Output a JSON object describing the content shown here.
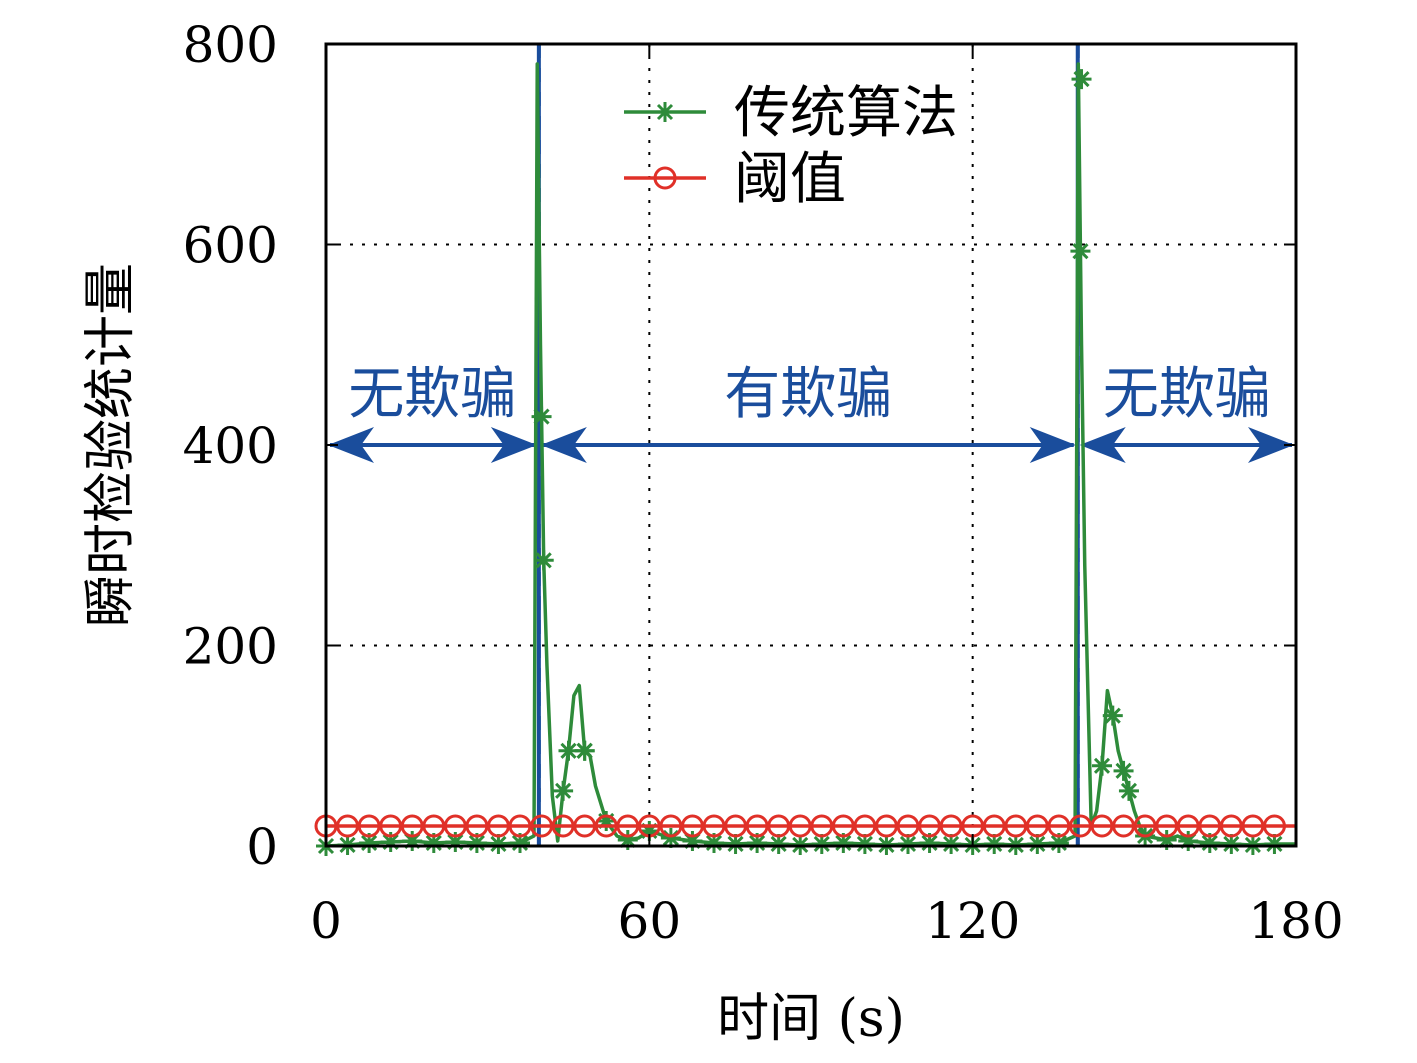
{
  "chart_data": {
    "type": "line",
    "title": "",
    "xlabel": "时间 (s)",
    "ylabel": "瞬时检验统计量",
    "xlim": [
      0,
      180
    ],
    "ylim": [
      0,
      800
    ],
    "xticks": [
      0,
      60,
      120,
      180
    ],
    "yticks": [
      0,
      200,
      400,
      600,
      800
    ],
    "grid": true,
    "legend_position": "top-center",
    "series": [
      {
        "name": "传统算法",
        "color": "#2e8b3a",
        "marker": "asterisk",
        "x": [
          0,
          4,
          8,
          12,
          16,
          20,
          24,
          28,
          32,
          36,
          38.6,
          39.2,
          39.8,
          40.4,
          41,
          42,
          43,
          44,
          45,
          46,
          47,
          48,
          49,
          50,
          52,
          54,
          56,
          58,
          60,
          64,
          68,
          72,
          76,
          80,
          84,
          88,
          92,
          96,
          100,
          104,
          108,
          112,
          116,
          120,
          124,
          128,
          132,
          136,
          139,
          139.6,
          140.2,
          140.8,
          141.4,
          142,
          143,
          144,
          145,
          146,
          147,
          148,
          149,
          150,
          151,
          152,
          154,
          156,
          158,
          160,
          164,
          168,
          172,
          176,
          180
        ],
        "y": [
          0,
          1,
          3,
          4,
          5,
          3,
          4,
          3,
          2,
          3,
          10,
          780,
          500,
          285,
          180,
          50,
          5,
          55,
          95,
          150,
          160,
          95,
          90,
          60,
          25,
          10,
          6,
          8,
          15,
          8,
          5,
          3,
          2,
          3,
          2,
          1,
          2,
          3,
          2,
          1,
          2,
          3,
          2,
          1,
          2,
          1,
          2,
          3,
          10,
          780,
          500,
          280,
          150,
          20,
          35,
          80,
          155,
          130,
          95,
          75,
          55,
          35,
          20,
          10,
          8,
          6,
          10,
          5,
          3,
          2,
          1,
          2,
          2
        ]
      },
      {
        "name": "阈值",
        "color": "#e03028",
        "marker": "circle",
        "x": [
          0,
          180
        ],
        "y": [
          20,
          20
        ]
      }
    ],
    "event_lines_x": [
      39.5,
      139.5
    ],
    "event_line_color": "#1a4d9c",
    "regions": [
      {
        "label": "无欺骗",
        "x_start": 0,
        "x_end": 39.5
      },
      {
        "label": "有欺骗",
        "x_start": 39.5,
        "x_end": 139.5
      },
      {
        "label": "无欺骗",
        "x_start": 139.5,
        "x_end": 180
      }
    ],
    "region_arrow_y": 400
  }
}
